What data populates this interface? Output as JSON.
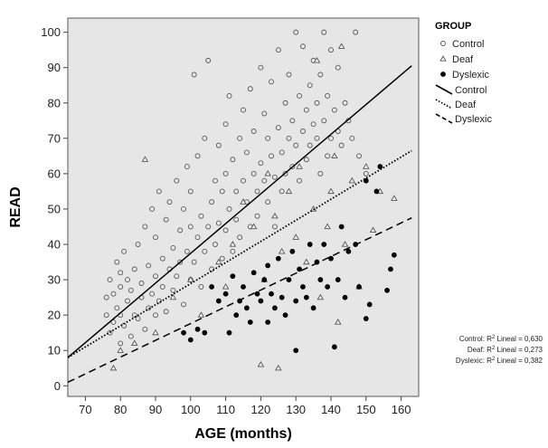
{
  "chart_data": {
    "type": "scatter",
    "xlabel": "AGE (months)",
    "ylabel": "READ",
    "xlim": [
      65,
      165
    ],
    "ylim": [
      -3,
      104
    ],
    "x_ticks": [
      70,
      80,
      90,
      100,
      110,
      120,
      130,
      140,
      150,
      160
    ],
    "y_ticks": [
      0,
      10,
      20,
      30,
      40,
      50,
      60,
      70,
      80,
      90,
      100
    ],
    "plot_background": "#e6e6e6",
    "grid": false,
    "legend": {
      "title": "GROUP",
      "placement": "right",
      "marker_entries": [
        "Control",
        "Deaf",
        "Dyslexic"
      ],
      "line_entries": [
        "Control",
        "Deaf",
        "Dyslexic"
      ]
    },
    "series": [
      {
        "name": "Control",
        "marker": "circle-open",
        "color": "#555555",
        "points": [
          [
            76,
            20
          ],
          [
            76,
            25
          ],
          [
            77,
            15
          ],
          [
            77,
            30
          ],
          [
            78,
            18
          ],
          [
            78,
            26
          ],
          [
            79,
            22
          ],
          [
            79,
            35
          ],
          [
            80,
            12
          ],
          [
            80,
            20
          ],
          [
            80,
            28
          ],
          [
            80,
            32
          ],
          [
            81,
            17
          ],
          [
            81,
            38
          ],
          [
            82,
            24
          ],
          [
            82,
            30
          ],
          [
            83,
            14
          ],
          [
            83,
            27
          ],
          [
            84,
            20
          ],
          [
            84,
            33
          ],
          [
            85,
            19
          ],
          [
            85,
            40
          ],
          [
            86,
            25
          ],
          [
            86,
            29
          ],
          [
            87,
            16
          ],
          [
            87,
            45
          ],
          [
            88,
            22
          ],
          [
            88,
            34
          ],
          [
            89,
            26
          ],
          [
            89,
            50
          ],
          [
            90,
            20
          ],
          [
            90,
            31
          ],
          [
            90,
            42
          ],
          [
            91,
            24
          ],
          [
            91,
            55
          ],
          [
            92,
            28
          ],
          [
            92,
            36
          ],
          [
            93,
            21
          ],
          [
            93,
            47
          ],
          [
            94,
            33
          ],
          [
            94,
            52
          ],
          [
            95,
            27
          ],
          [
            95,
            39
          ],
          [
            96,
            31
          ],
          [
            96,
            58
          ],
          [
            97,
            35
          ],
          [
            97,
            44
          ],
          [
            98,
            23
          ],
          [
            98,
            50
          ],
          [
            99,
            38
          ],
          [
            99,
            62
          ],
          [
            100,
            30
          ],
          [
            100,
            45
          ],
          [
            100,
            55
          ],
          [
            101,
            88
          ],
          [
            101,
            35
          ],
          [
            102,
            42
          ],
          [
            102,
            65
          ],
          [
            103,
            48
          ],
          [
            103,
            28
          ],
          [
            104,
            38
          ],
          [
            104,
            70
          ],
          [
            105,
            45
          ],
          [
            105,
            92
          ],
          [
            106,
            52
          ],
          [
            106,
            33
          ],
          [
            107,
            40
          ],
          [
            107,
            58
          ],
          [
            108,
            46
          ],
          [
            108,
            68
          ],
          [
            109,
            55
          ],
          [
            109,
            36
          ],
          [
            110,
            44
          ],
          [
            110,
            60
          ],
          [
            110,
            74
          ],
          [
            111,
            50
          ],
          [
            111,
            82
          ],
          [
            112,
            38
          ],
          [
            112,
            64
          ],
          [
            113,
            55
          ],
          [
            113,
            47
          ],
          [
            114,
            70
          ],
          [
            114,
            42
          ],
          [
            115,
            58
          ],
          [
            115,
            78
          ],
          [
            116,
            52
          ],
          [
            116,
            66
          ],
          [
            117,
            45
          ],
          [
            117,
            84
          ],
          [
            118,
            60
          ],
          [
            118,
            72
          ],
          [
            119,
            55
          ],
          [
            119,
            48
          ],
          [
            120,
            63
          ],
          [
            120,
            90
          ],
          [
            121,
            58
          ],
          [
            121,
            77
          ],
          [
            122,
            70
          ],
          [
            122,
            52
          ],
          [
            123,
            65
          ],
          [
            123,
            86
          ],
          [
            124,
            59
          ],
          [
            124,
            45
          ],
          [
            125,
            73
          ],
          [
            125,
            95
          ],
          [
            126,
            66
          ],
          [
            126,
            55
          ],
          [
            127,
            80
          ],
          [
            127,
            60
          ],
          [
            128,
            70
          ],
          [
            128,
            88
          ],
          [
            129,
            62
          ],
          [
            129,
            75
          ],
          [
            130,
            100
          ],
          [
            130,
            68
          ],
          [
            131,
            58
          ],
          [
            131,
            82
          ],
          [
            132,
            72
          ],
          [
            132,
            96
          ],
          [
            133,
            64
          ],
          [
            133,
            78
          ],
          [
            134,
            85
          ],
          [
            134,
            68
          ],
          [
            135,
            74
          ],
          [
            135,
            92
          ],
          [
            136,
            70
          ],
          [
            136,
            80
          ],
          [
            137,
            60
          ],
          [
            137,
            88
          ],
          [
            138,
            100
          ],
          [
            138,
            75
          ],
          [
            139,
            65
          ],
          [
            139,
            82
          ],
          [
            140,
            70
          ],
          [
            140,
            95
          ],
          [
            141,
            78
          ],
          [
            142,
            72
          ],
          [
            142,
            90
          ],
          [
            143,
            68
          ],
          [
            144,
            80
          ],
          [
            145,
            75
          ],
          [
            146,
            70
          ],
          [
            147,
            100
          ],
          [
            148,
            65
          ],
          [
            150,
            60
          ]
        ]
      },
      {
        "name": "Deaf",
        "marker": "triangle",
        "color": "#555555",
        "points": [
          [
            78,
            5
          ],
          [
            80,
            10
          ],
          [
            84,
            12
          ],
          [
            87,
            64
          ],
          [
            90,
            15
          ],
          [
            95,
            25
          ],
          [
            100,
            30
          ],
          [
            103,
            20
          ],
          [
            108,
            35
          ],
          [
            110,
            28
          ],
          [
            112,
            40
          ],
          [
            115,
            52
          ],
          [
            118,
            45
          ],
          [
            120,
            6
          ],
          [
            121,
            30
          ],
          [
            122,
            60
          ],
          [
            124,
            48
          ],
          [
            125,
            5
          ],
          [
            126,
            38
          ],
          [
            128,
            55
          ],
          [
            130,
            42
          ],
          [
            131,
            62
          ],
          [
            133,
            35
          ],
          [
            135,
            50
          ],
          [
            136,
            92
          ],
          [
            137,
            25
          ],
          [
            139,
            45
          ],
          [
            140,
            55
          ],
          [
            141,
            65
          ],
          [
            142,
            18
          ],
          [
            143,
            96
          ],
          [
            144,
            40
          ],
          [
            146,
            58
          ],
          [
            148,
            28
          ],
          [
            150,
            62
          ],
          [
            152,
            44
          ],
          [
            154,
            55
          ],
          [
            158,
            53
          ]
        ]
      },
      {
        "name": "Dyslexic",
        "marker": "circle-filled",
        "color": "#000000",
        "points": [
          [
            98,
            15
          ],
          [
            100,
            13
          ],
          [
            102,
            16
          ],
          [
            104,
            15
          ],
          [
            106,
            28
          ],
          [
            108,
            24
          ],
          [
            110,
            26
          ],
          [
            111,
            15
          ],
          [
            112,
            31
          ],
          [
            113,
            20
          ],
          [
            114,
            24
          ],
          [
            115,
            28
          ],
          [
            116,
            22
          ],
          [
            117,
            18
          ],
          [
            118,
            32
          ],
          [
            119,
            26
          ],
          [
            120,
            24
          ],
          [
            121,
            30
          ],
          [
            122,
            18
          ],
          [
            122,
            34
          ],
          [
            123,
            26
          ],
          [
            124,
            22
          ],
          [
            125,
            36
          ],
          [
            126,
            25
          ],
          [
            127,
            20
          ],
          [
            128,
            30
          ],
          [
            129,
            38
          ],
          [
            130,
            24
          ],
          [
            130,
            10
          ],
          [
            131,
            33
          ],
          [
            132,
            28
          ],
          [
            133,
            25
          ],
          [
            134,
            40
          ],
          [
            135,
            22
          ],
          [
            136,
            35
          ],
          [
            137,
            30
          ],
          [
            138,
            40
          ],
          [
            139,
            28
          ],
          [
            140,
            36
          ],
          [
            141,
            11
          ],
          [
            142,
            30
          ],
          [
            143,
            45
          ],
          [
            144,
            25
          ],
          [
            145,
            38
          ],
          [
            147,
            40
          ],
          [
            148,
            28
          ],
          [
            150,
            19
          ],
          [
            150,
            58
          ],
          [
            151,
            23
          ],
          [
            153,
            55
          ],
          [
            154,
            62
          ],
          [
            156,
            27
          ],
          [
            157,
            33
          ],
          [
            158,
            37
          ]
        ]
      }
    ],
    "fit_lines": [
      {
        "name": "Control",
        "style": "solid",
        "x": [
          65,
          163
        ],
        "y": [
          8,
          90.5
        ]
      },
      {
        "name": "Deaf",
        "style": "dotted",
        "x": [
          65,
          163
        ],
        "y": [
          8,
          66.5
        ]
      },
      {
        "name": "Dyslexic",
        "style": "dashed",
        "x": [
          65,
          163
        ],
        "y": [
          1,
          47.5
        ]
      }
    ],
    "fit_annotations": [
      {
        "group": "Control:",
        "label": " Lineal = 0,630"
      },
      {
        "group": "Deaf:",
        "label": " Lineal = 0,273"
      },
      {
        "group": "Dyslexic:",
        "label": " Lineal = 0,382"
      }
    ],
    "r2_symbol": "R",
    "r2_superscript": "2"
  }
}
